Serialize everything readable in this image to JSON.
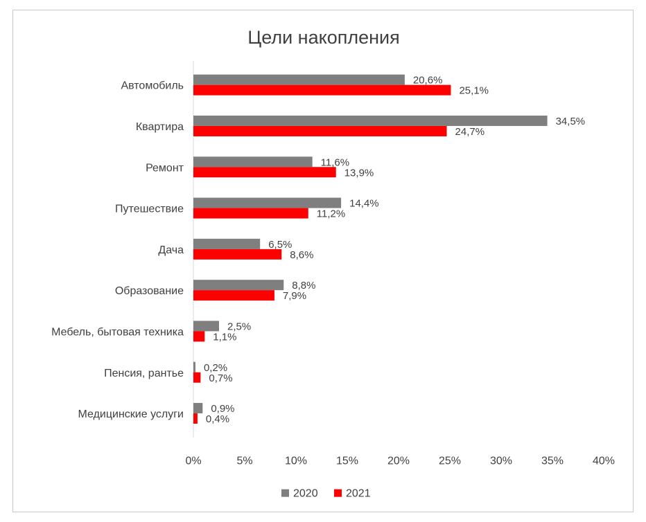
{
  "chart_data": {
    "type": "bar",
    "orientation": "horizontal",
    "title": "Цели накопления",
    "xlabel": "",
    "ylabel": "",
    "xlim": [
      0,
      40
    ],
    "x_ticks": [
      "0%",
      "5%",
      "10%",
      "15%",
      "20%",
      "25%",
      "30%",
      "35%",
      "40%"
    ],
    "grid": false,
    "legend_position": "bottom",
    "categories": [
      "Автомобиль",
      "Квартира",
      "Ремонт",
      "Путешествие",
      "Дача",
      "Образование",
      "Мебель, бытовая техника",
      "Пенсия, рантье",
      "Медицинские услуги"
    ],
    "series": [
      {
        "name": "2020",
        "color": "#7f7f7f",
        "values": [
          20.6,
          34.5,
          11.6,
          14.4,
          6.5,
          8.8,
          2.5,
          0.2,
          0.9
        ],
        "labels": [
          "20,6%",
          "34,5%",
          "11,6%",
          "14,4%",
          "6,5%",
          "8,8%",
          "2,5%",
          "0,2%",
          "0,9%"
        ]
      },
      {
        "name": "2021",
        "color": "#ff0000",
        "values": [
          25.1,
          24.7,
          13.9,
          11.2,
          8.6,
          7.9,
          1.1,
          0.7,
          0.4
        ],
        "labels": [
          "25,1%",
          "24,7%",
          "13,9%",
          "11,2%",
          "8,6%",
          "7,9%",
          "1,1%",
          "0,7%",
          "0,4%"
        ]
      }
    ]
  }
}
